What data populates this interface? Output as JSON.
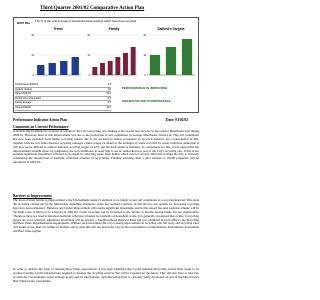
{
  "header": {
    "title": "Third Quarter 2001/02 Comparative Action Plan"
  },
  "indicator": {
    "code": "BVPI 82a",
    "description": "The % of the total tonnage of household waste arisings which have been recycled"
  },
  "chart": {
    "ylim": [
      0,
      20
    ],
    "yticks": [
      0,
      10,
      20
    ],
    "panels": [
      {
        "title": "Trend",
        "values": [
          5,
          6,
          7,
          9
        ],
        "color": "#1f3a93"
      },
      {
        "title": "Family",
        "values": [
          4,
          6,
          7,
          9,
          11,
          14
        ],
        "color": "#7a1f3d"
      },
      {
        "title": "Salford's Targets",
        "values": [
          10,
          14,
          18
        ],
        "color": "#2e7d32"
      }
    ]
  },
  "performance_table": {
    "rows": [
      [
        "Performance 2000/01",
        "6.8"
      ],
      [
        "Quartile ranking",
        "3rd"
      ],
      [
        "Target 2001/02",
        "10.0"
      ],
      [
        "Performance this quarter",
        "8.9"
      ],
      [
        "Family average",
        "9.5"
      ],
      [
        "Target 2002/03",
        "14.0"
      ]
    ]
  },
  "status": {
    "trend": "PERFORMANCE IS IMPROVING",
    "direction": "HIGHER FIGURE IS PREFERABLE"
  },
  "action_plan": {
    "heading": "Performance Indicator Action Plan",
    "date": "Date: 03/02/02"
  },
  "comments": {
    "heading": "Comments on Current Performance",
    "text": "A notable improvement has occurred in relation to the City's recycling rate, making it the second best recycler in the Greater Manchester area during 2000/01. However, most of this improvement was due to the production of soil conditioner by Greater Manchester Waste Ltd. This soil conditioner has now been excluded from further recycling returns due to the decision to realise acceptance as recycled material. As a consequence of this, together with the fact some disposal recycling tonnages cannot longer be added to the tonnages of waste recycled by waste collection authorities it will now prove difficult to achieve national recycling targets of 10% and the draft statutory standard. To compensate for this, it was agreed that the improvements brought about by composting the soil conditioner in order that it can be reintroduced as part of the City's recycling rate. If this is not possible significant investment will need to be made in collecting waste from homes which can be recycled. With this in mind the City is currently considering the introduction of kerbside collection schemes of recyclables. Funding allowing, then a pilot scheme of 10,000 properties will be introduced in 2002/03."
  },
  "barriers": {
    "heading": "Barriers to Improvement",
    "text": "The most obvious barrier to improvement is the Environment Agency's decision to no longer accept soil conditioner as a recycled material. This aside the recycling carried out by the Merseyside signalling alternative waste has reached a plateau, in that all low-cost options for increasing recycling have now been exhausted. Therefore any further improvement will require significant investment, and in this respect the pilot kerbside scheme will be the main route is likely to be achieved in 2001/02. Given recycling can be increased to the setting of income-raising banks but not significantly. Therefore there is a need to introduce kerbside collection schemes for elements of household waste. It is generally recognised that of this, if recycling targets are to be achieved, significant investment will be needed, a Neighbourhood Renewal Fund bid was submitted in early 2002 to the Recycling and Best Value Implementation requirements. Without such investment the City's steady improvement in recycling will fall away and recycling rates will return to less than 5% within 12 months, and as such this will not favour the City in the Government's Comprehensive Performance Assessment and Best Value regime.",
    "text2": "In order to address the issue of meeting Best Value expectations, it has been identified that a pilot kerbside Recycling Action Plan needs to be produced setting out the infrastructure required to develop the recycling services that will be required for the future. This will also have to take into account the Government's waste strategy policy and its implications, with Recycling Plan to currently being developed as part of the Directorate's Best Value review programme."
  }
}
